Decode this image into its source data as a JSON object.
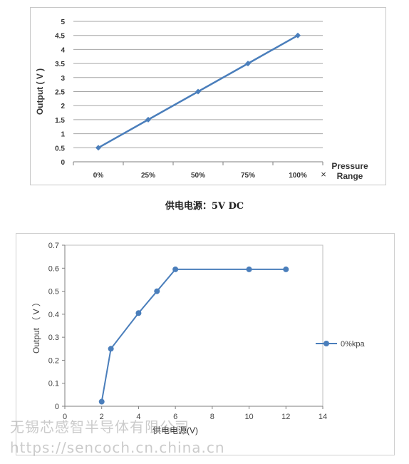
{
  "caption": "供电电源：5V DC",
  "watermark": {
    "company": "无锡芯感智半导体有限公司",
    "url": "https://sencoch.cn.china.cn"
  },
  "colors": {
    "series": "#4a7ebb",
    "grid": "#a6a6a6",
    "axis": "#7f7f7f"
  },
  "chart_data": [
    {
      "type": "line",
      "categories": [
        "0%",
        "25%",
        "50%",
        "75%",
        "100%"
      ],
      "values": [
        0.5,
        1.5,
        2.5,
        3.5,
        4.5
      ],
      "ylabel": "Output ( V )",
      "xlabel": "Pressure Range",
      "x_marker": "×",
      "ylim": [
        0,
        5
      ],
      "yticks": [
        "0",
        "0.5",
        "1",
        "1.5",
        "2",
        "2.5",
        "3",
        "3.5",
        "4",
        "4.5",
        "5"
      ],
      "grid": true
    },
    {
      "type": "line",
      "series": [
        {
          "name": "0%kpa",
          "x": [
            2,
            2.5,
            4,
            5,
            6,
            10,
            12
          ],
          "y": [
            0.02,
            0.25,
            0.405,
            0.5,
            0.595,
            0.595,
            0.595
          ]
        }
      ],
      "xlabel": "供电电源(V)",
      "ylabel": "Output （ V ）",
      "xlim": [
        0,
        14
      ],
      "ylim": [
        0,
        0.7
      ],
      "xticks": [
        "0",
        "2",
        "4",
        "6",
        "8",
        "10",
        "12",
        "14"
      ],
      "yticks": [
        "0",
        "0.1",
        "0.2",
        "0.3",
        "0.4",
        "0.5",
        "0.6",
        "0.7"
      ],
      "legend": "right",
      "grid": false
    }
  ]
}
